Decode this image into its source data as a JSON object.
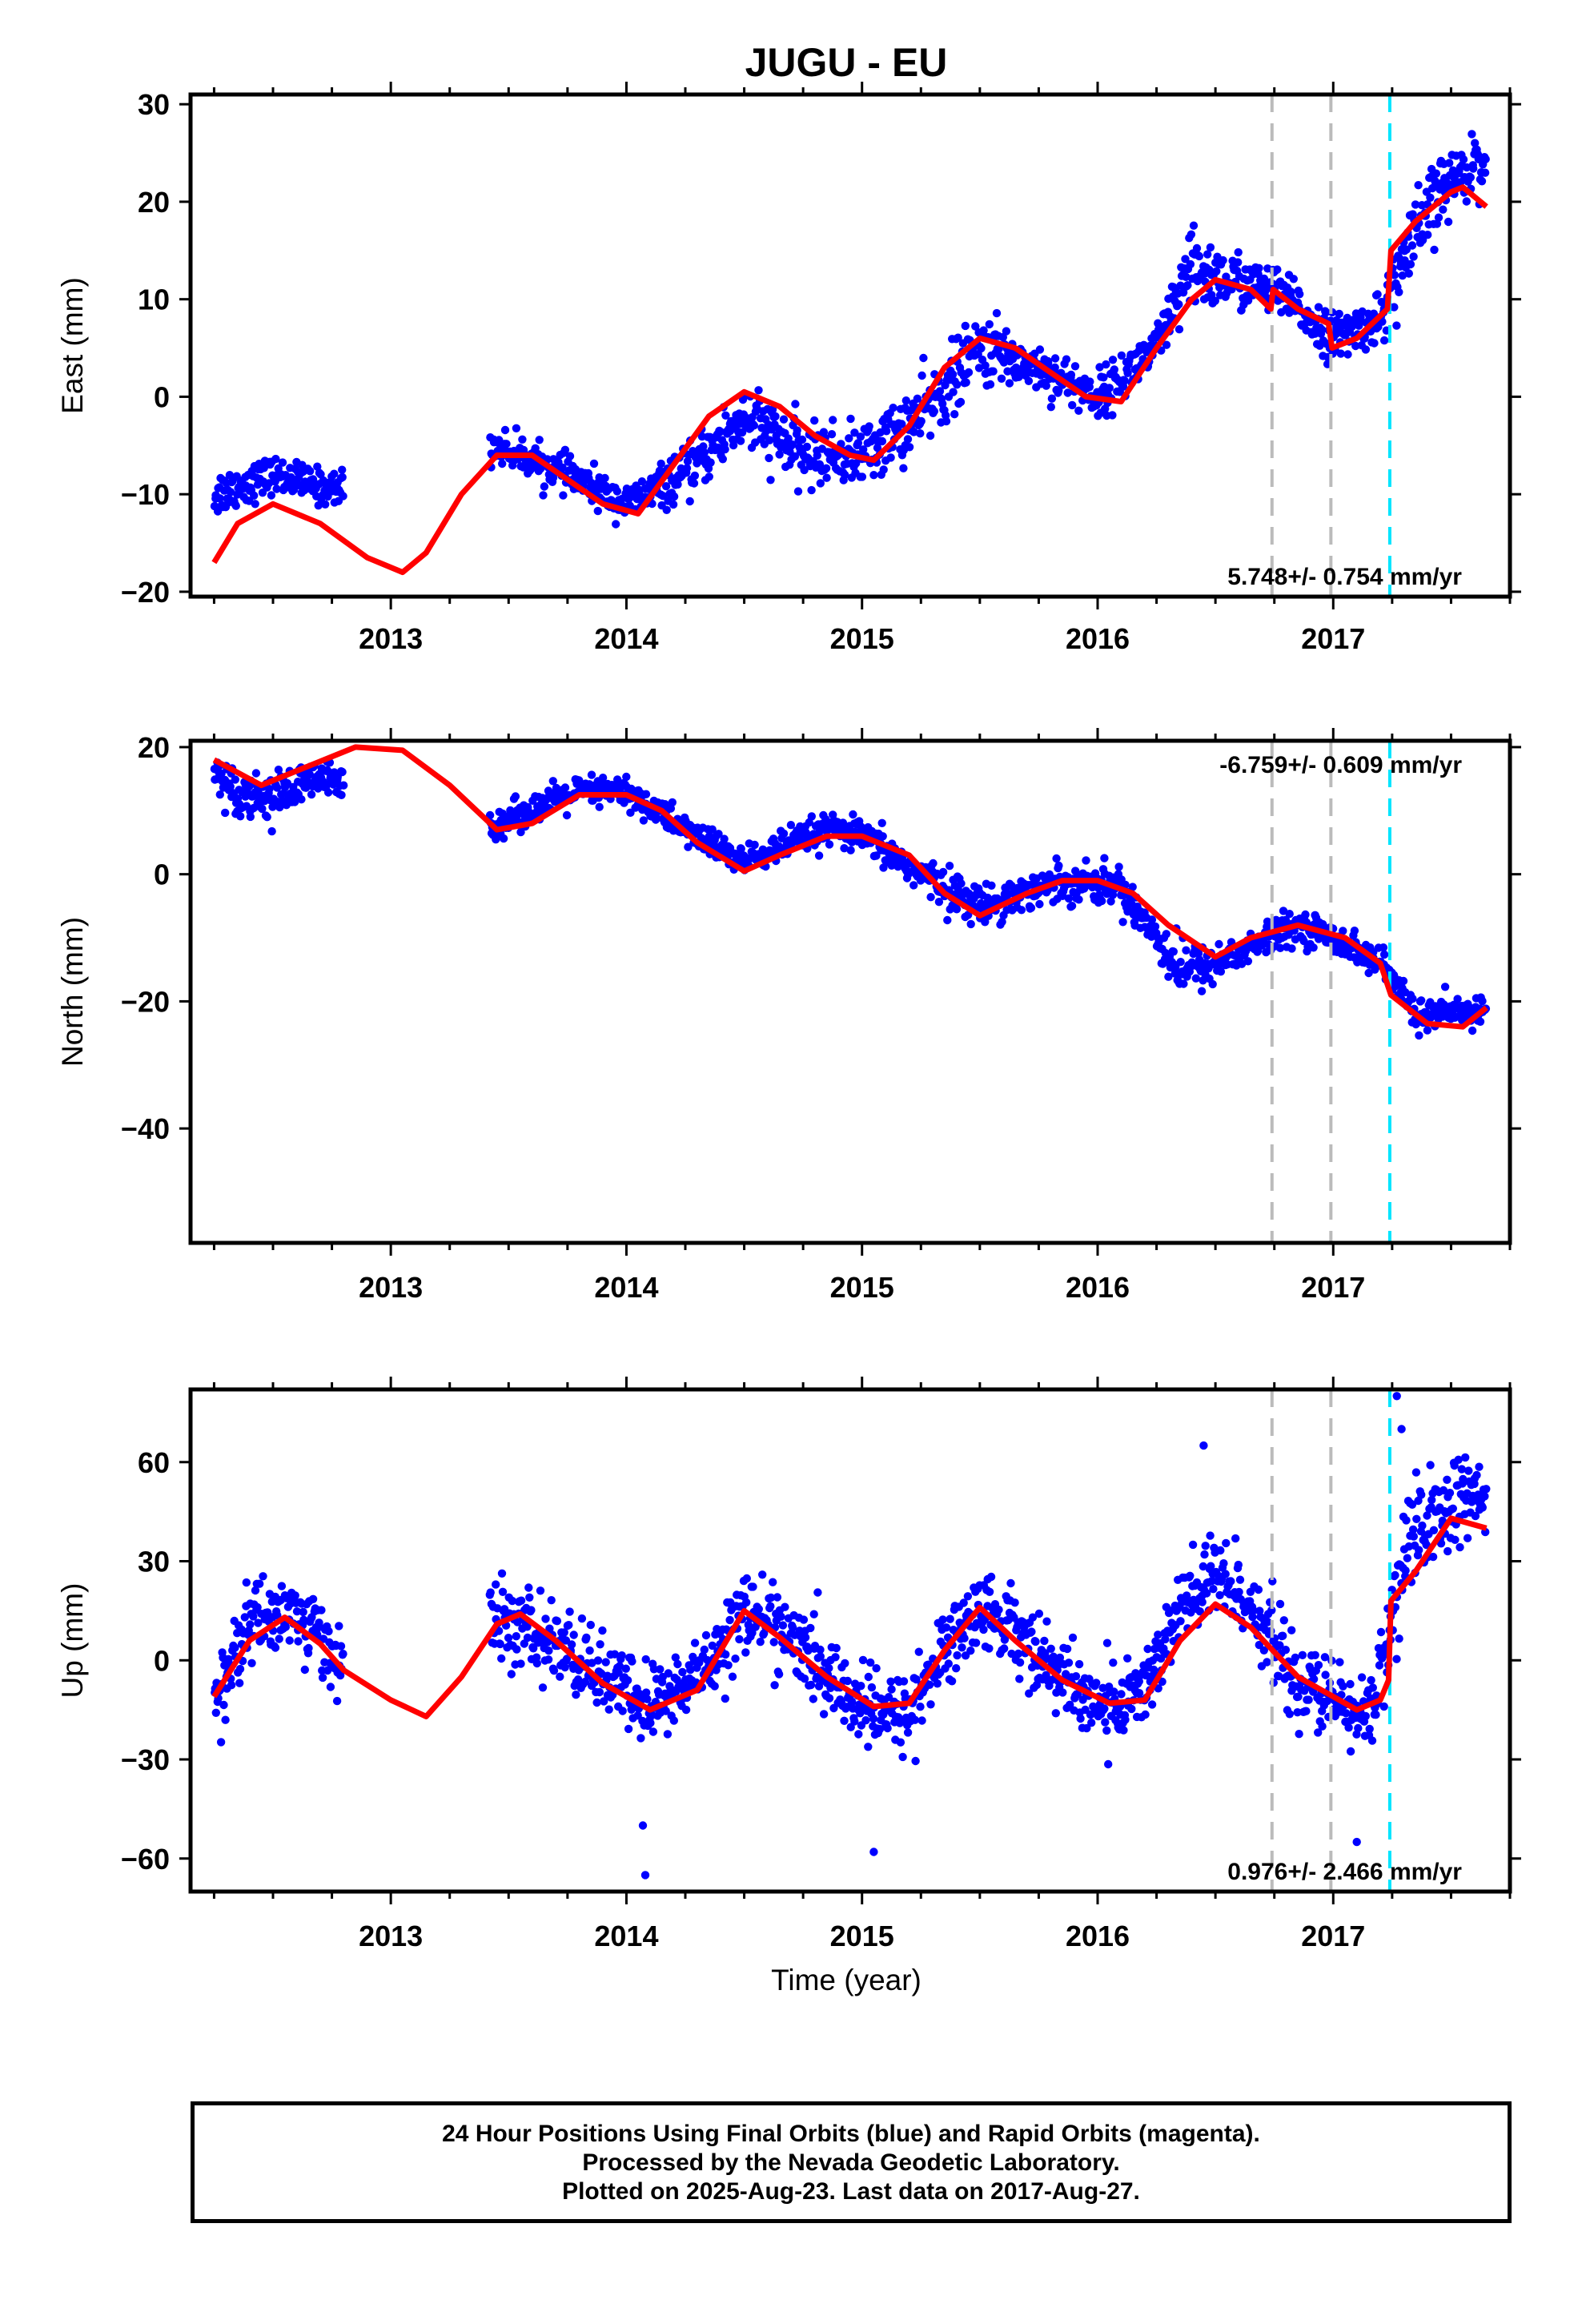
{
  "chart_data": {
    "type": "scatter",
    "title": "JUGU - EU",
    "xlabel": "Time (year)",
    "xlim": [
      2012.15,
      2017.75
    ],
    "x_ticks": [
      "2013",
      "2014",
      "2015",
      "2016",
      "2017"
    ],
    "marker_lines": [
      {
        "x": 2016.74,
        "color": "#bbbbbb",
        "style": "dashed"
      },
      {
        "x": 2016.99,
        "color": "#bbbbbb",
        "style": "dashed"
      },
      {
        "x": 2017.24,
        "color": "#00e5ff",
        "style": "dashed"
      }
    ],
    "colors": {
      "points": "#0000ff",
      "model": "#ff0000"
    },
    "panels": [
      {
        "ylabel": "East (mm)",
        "ylim": [
          -20.5,
          31
        ],
        "y_ticks": [
          "30",
          "20",
          "10",
          "0",
          "−10",
          "−20"
        ],
        "rate": "5.748+/- 0.754 mm/yr",
        "segments": [
          [
            2012.25,
            2012.8
          ],
          [
            2013.42,
            2017.65
          ]
        ],
        "model": {
          "x": [
            2012.25,
            2012.35,
            2012.5,
            2012.7,
            2012.9,
            2013.05,
            2013.15,
            2013.3,
            2013.45,
            2013.6,
            2013.75,
            2013.9,
            2014.05,
            2014.2,
            2014.35,
            2014.5,
            2014.65,
            2014.8,
            2014.95,
            2015.05,
            2015.2,
            2015.35,
            2015.5,
            2015.65,
            2015.8,
            2015.95,
            2016.1,
            2016.25,
            2016.4,
            2016.5,
            2016.65,
            2016.735,
            2016.745,
            2016.85,
            2016.98,
            2016.995,
            2017.1,
            2017.23,
            2017.245,
            2017.35,
            2017.5,
            2017.55,
            2017.65
          ],
          "y": [
            -17,
            -13,
            -11,
            -13,
            -16.5,
            -18,
            -16,
            -10,
            -6,
            -6,
            -8.5,
            -11,
            -12,
            -7,
            -2,
            0.5,
            -1,
            -4,
            -6,
            -6.5,
            -3,
            3,
            6,
            5,
            2.5,
            0,
            -0.5,
            5,
            10,
            12,
            11,
            9,
            11,
            9,
            7.5,
            5,
            6,
            9,
            15,
            18,
            21,
            21.5,
            19.5
          ]
        },
        "bands": [
          [
            2012.25,
            -10,
            2
          ],
          [
            2012.5,
            -8,
            1.5
          ],
          [
            2012.75,
            -9.5,
            1.5
          ],
          [
            2013.45,
            -5,
            1.5
          ],
          [
            2013.75,
            -8,
            1.5
          ],
          [
            2014.0,
            -11,
            1.5
          ],
          [
            2014.25,
            -8,
            2
          ],
          [
            2014.5,
            -2,
            3
          ],
          [
            2014.75,
            -6,
            2.5
          ],
          [
            2015.0,
            -6,
            2.5
          ],
          [
            2015.25,
            -2,
            3
          ],
          [
            2015.5,
            5,
            3
          ],
          [
            2015.75,
            3,
            2
          ],
          [
            2016.0,
            0,
            2
          ],
          [
            2016.25,
            5,
            2
          ],
          [
            2016.4,
            13,
            3.5
          ],
          [
            2016.55,
            12,
            2.5
          ],
          [
            2016.75,
            11,
            2
          ],
          [
            2017.0,
            6,
            2
          ],
          [
            2017.2,
            8,
            2
          ],
          [
            2017.3,
            14,
            4
          ],
          [
            2017.45,
            21,
            3
          ],
          [
            2017.6,
            24,
            2.5
          ],
          [
            2017.65,
            24,
            2.5
          ]
        ]
      },
      {
        "ylabel": "North (mm)",
        "ylim": [
          -58,
          21
        ],
        "y_ticks": [
          "20",
          "0",
          "−20",
          "−40"
        ],
        "rate": "-6.759+/- 0.609 mm/yr",
        "segments": [
          [
            2012.25,
            2012.8
          ],
          [
            2013.42,
            2017.65
          ]
        ],
        "model": {
          "x": [
            2012.25,
            2012.45,
            2012.65,
            2012.85,
            2013.05,
            2013.25,
            2013.45,
            2013.6,
            2013.8,
            2014.0,
            2014.15,
            2014.3,
            2014.5,
            2014.65,
            2014.85,
            2015.0,
            2015.2,
            2015.35,
            2015.5,
            2015.7,
            2015.85,
            2016.0,
            2016.15,
            2016.3,
            2016.5,
            2016.65,
            2016.85,
            2017.05,
            2017.2,
            2017.245,
            2017.4,
            2017.55,
            2017.65
          ],
          "y": [
            18,
            14,
            17,
            20,
            19.5,
            14,
            7,
            8,
            12.5,
            12.5,
            10,
            5,
            0.5,
            3,
            6,
            6,
            3,
            -3,
            -6.5,
            -3,
            -1,
            -1,
            -3,
            -8,
            -13,
            -10,
            -8,
            -10,
            -14,
            -19,
            -23.5,
            -24,
            -21
          ]
        },
        "bands": [
          [
            2012.25,
            16,
            2
          ],
          [
            2012.35,
            13,
            3
          ],
          [
            2012.5,
            12,
            3
          ],
          [
            2012.7,
            15,
            2.5
          ],
          [
            2013.45,
            8,
            2
          ],
          [
            2013.8,
            13,
            2
          ],
          [
            2014.0,
            13,
            2
          ],
          [
            2014.25,
            7,
            2
          ],
          [
            2014.5,
            2,
            2
          ],
          [
            2014.85,
            7,
            2
          ],
          [
            2015.0,
            6,
            2
          ],
          [
            2015.25,
            0,
            2.5
          ],
          [
            2015.5,
            -5,
            2.5
          ],
          [
            2015.85,
            -1,
            2.5
          ],
          [
            2016.1,
            -2,
            2.5
          ],
          [
            2016.35,
            -15,
            3.5
          ],
          [
            2016.5,
            -14,
            2.5
          ],
          [
            2016.85,
            -8,
            2
          ],
          [
            2017.0,
            -10,
            2
          ],
          [
            2017.2,
            -14,
            2
          ],
          [
            2017.35,
            -22,
            2
          ],
          [
            2017.55,
            -22,
            2
          ],
          [
            2017.65,
            -21,
            2
          ]
        ]
      },
      {
        "ylabel": "Up (mm)",
        "ylim": [
          -70,
          82
        ],
        "y_ticks": [
          "60",
          "30",
          "0",
          "−30",
          "−60"
        ],
        "rate": "0.976+/- 2.466 mm/yr",
        "segments": [
          [
            2012.25,
            2012.8
          ],
          [
            2013.42,
            2017.65
          ]
        ],
        "model": {
          "x": [
            2012.25,
            2012.4,
            2012.55,
            2012.7,
            2012.8,
            2013.0,
            2013.15,
            2013.3,
            2013.45,
            2013.55,
            2013.7,
            2013.9,
            2014.1,
            2014.3,
            2014.5,
            2014.65,
            2014.85,
            2015.05,
            2015.2,
            2015.35,
            2015.5,
            2015.65,
            2015.85,
            2016.05,
            2016.2,
            2016.35,
            2016.5,
            2016.65,
            2016.85,
            2017.0,
            2017.1,
            2017.2,
            2017.235,
            2017.245,
            2017.35,
            2017.5,
            2017.65
          ],
          "y": [
            -11,
            6,
            13,
            5,
            -3,
            -12,
            -17,
            -5,
            11,
            14,
            6,
            -7,
            -15,
            -9,
            15,
            7,
            -5,
            -14,
            -13,
            3,
            16,
            6,
            -6,
            -13,
            -12,
            6,
            17,
            10,
            -5,
            -11,
            -15,
            -12,
            -6,
            18,
            27,
            43,
            40
          ]
        },
        "bands": [
          [
            2012.25,
            -15,
            12
          ],
          [
            2012.4,
            12,
            10
          ],
          [
            2012.55,
            15,
            10
          ],
          [
            2012.7,
            8,
            10
          ],
          [
            2012.8,
            -2,
            10
          ],
          [
            2013.45,
            12,
            10
          ],
          [
            2013.7,
            5,
            10
          ],
          [
            2013.9,
            -5,
            10
          ],
          [
            2014.1,
            -14,
            10
          ],
          [
            2014.3,
            -5,
            10
          ],
          [
            2014.5,
            15,
            10
          ],
          [
            2014.65,
            10,
            10
          ],
          [
            2014.85,
            -5,
            10
          ],
          [
            2015.05,
            -17,
            10
          ],
          [
            2015.2,
            -15,
            10
          ],
          [
            2015.35,
            3,
            10
          ],
          [
            2015.5,
            16,
            10
          ],
          [
            2015.65,
            10,
            10
          ],
          [
            2015.85,
            -6,
            10
          ],
          [
            2016.05,
            -15,
            10
          ],
          [
            2016.2,
            -8,
            10
          ],
          [
            2016.35,
            15,
            12
          ],
          [
            2016.5,
            25,
            12
          ],
          [
            2016.65,
            18,
            10
          ],
          [
            2016.85,
            -8,
            10
          ],
          [
            2017.0,
            -12,
            10
          ],
          [
            2017.15,
            -18,
            10
          ],
          [
            2017.3,
            30,
            15
          ],
          [
            2017.45,
            45,
            12
          ],
          [
            2017.6,
            50,
            10
          ],
          [
            2017.65,
            45,
            10
          ]
        ],
        "outliers": [
          [
            2014.08,
            -65
          ],
          [
            2014.07,
            -50
          ],
          [
            2015.05,
            -58
          ],
          [
            2016.45,
            65
          ],
          [
            2017.27,
            80
          ],
          [
            2017.29,
            70
          ],
          [
            2017.1,
            -55
          ]
        ]
      }
    ]
  },
  "caption": {
    "line1": "24 Hour Positions Using Final Orbits (blue) and Rapid Orbits (magenta).",
    "line2": "Processed by the Nevada Geodetic Laboratory.",
    "line3": "Plotted on 2025-Aug-23. Last data on 2017-Aug-27."
  }
}
